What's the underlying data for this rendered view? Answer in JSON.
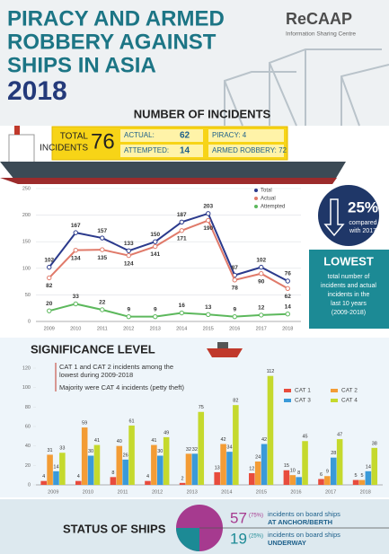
{
  "header": {
    "title_lines": [
      "PIRACY AND ARMED",
      "ROBBERY AGAINST",
      "SHIPS IN ASIA"
    ],
    "year": "2018",
    "logo": "ReCAAP",
    "logo_sub": "Information Sharing Centre"
  },
  "section_incidents": "NUMBER OF INCIDENTS",
  "ship": {
    "total_label": [
      "TOTAL",
      "INCIDENTS"
    ],
    "total": "76",
    "actual_label": "ACTUAL:",
    "actual": "62",
    "attempted_label": "ATTEMPTED:",
    "attempted": "14",
    "piracy": "PIRACY: 4",
    "armed_robbery": "ARMED ROBBERY: 72"
  },
  "highlights": {
    "percent": "25%",
    "percent_note": [
      "compared",
      "with 2017"
    ],
    "lowest": "LOWEST",
    "lowest_note": [
      "total number of",
      "incidents and actual",
      "incidents in the",
      "last 10 years",
      "(2009-2018)"
    ]
  },
  "chart_data": [
    {
      "type": "line",
      "categories": [
        "2009",
        "2010",
        "2011",
        "2012",
        "2013",
        "2014",
        "2015",
        "2016",
        "2017",
        "2018"
      ],
      "series": [
        {
          "name": "Total",
          "color": "#2b3a8c",
          "values": [
            102,
            167,
            157,
            133,
            150,
            187,
            203,
            87,
            102,
            76
          ]
        },
        {
          "name": "Actual",
          "color": "#e07a6a",
          "values": [
            82,
            134,
            135,
            124,
            141,
            171,
            190,
            78,
            90,
            62
          ]
        },
        {
          "name": "Attempted",
          "color": "#5cb85c",
          "values": [
            20,
            33,
            22,
            9,
            9,
            16,
            13,
            9,
            12,
            14
          ]
        }
      ],
      "ylim": [
        0,
        250
      ],
      "yticks": [
        0,
        50,
        100,
        150,
        200,
        250
      ],
      "grid": true,
      "legend": "upper right"
    },
    {
      "type": "bar",
      "title": "SIGNIFICANCE LEVEL",
      "annotations": [
        [
          "CAT 1 and CAT 2 incidents among the",
          "lowest during 2009-2018"
        ],
        [
          "Majority were CAT 4 incidents (petty theft)"
        ]
      ],
      "categories": [
        "2009",
        "2010",
        "2011",
        "2012",
        "2013",
        "2014",
        "2015",
        "2016",
        "2017",
        "2018"
      ],
      "series": [
        {
          "name": "CAT 1",
          "color": "#e84c3d",
          "values": [
            4,
            4,
            8,
            4,
            2,
            13,
            12,
            15,
            6,
            5
          ]
        },
        {
          "name": "CAT 2",
          "color": "#f39c35",
          "values": [
            31,
            59,
            40,
            41,
            32,
            42,
            24,
            10,
            9,
            5
          ]
        },
        {
          "name": "CAT 3",
          "color": "#3a9ad9",
          "values": [
            14,
            30,
            26,
            30,
            32,
            34,
            42,
            8,
            28,
            14
          ]
        },
        {
          "name": "CAT 4",
          "color": "#c5d92d",
          "values": [
            33,
            41,
            61,
            49,
            75,
            82,
            112,
            45,
            47,
            38
          ]
        }
      ],
      "ylim": [
        0,
        120
      ],
      "yticks": [
        0,
        20,
        40,
        60,
        80,
        100,
        120
      ],
      "grid": false,
      "legend": "upper right"
    }
  ],
  "status": {
    "title": "STATUS OF SHIPS",
    "anchor_count": "57",
    "anchor_pct": "(75%)",
    "anchor_text": "incidents on board ships",
    "anchor_place": "AT ANCHOR/BERTH",
    "underway_count": "19",
    "underway_pct": "(25%)",
    "underway_text": "incidents on board ships",
    "underway_place": "UNDERWAY"
  }
}
